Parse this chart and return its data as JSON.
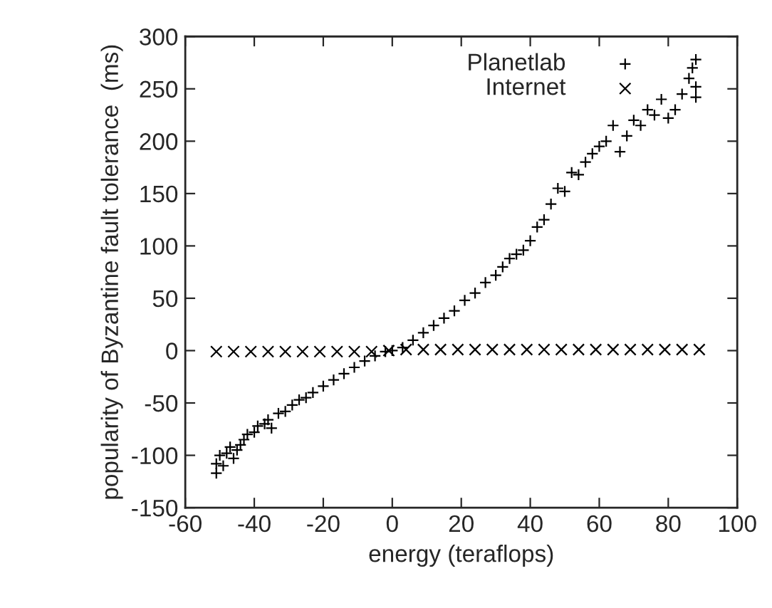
{
  "chart_data": {
    "type": "scatter",
    "xlabel": "energy (teraflops)",
    "ylabel": "popularity of Byzantine fault tolerance  (ms)",
    "xlim": [
      -60,
      100
    ],
    "xticks": [
      -60,
      -40,
      -20,
      0,
      20,
      40,
      60,
      80,
      100
    ],
    "ylim": [
      -150,
      300
    ],
    "yticks": [
      -150,
      -100,
      -50,
      0,
      50,
      100,
      150,
      200,
      250,
      300
    ],
    "grid": false,
    "legend": "top right",
    "series": [
      {
        "name": "Planetlab",
        "color": "#000000",
        "marker": "cross",
        "x": [
          -51,
          -51,
          -50,
          -49,
          -48,
          -47,
          -46,
          -45,
          -44,
          -43,
          -42,
          -40,
          -39,
          -37,
          -36,
          -35,
          -33,
          -31,
          -29,
          -27,
          -25,
          -23,
          -20,
          -17,
          -14,
          -11,
          -8,
          -5,
          -2,
          0,
          3,
          6,
          9,
          12,
          15,
          18,
          21,
          24,
          27,
          30,
          32,
          34,
          36,
          38,
          40,
          42,
          44,
          46,
          48,
          50,
          52,
          54,
          56,
          58,
          60,
          62,
          64,
          66,
          68,
          70,
          72,
          74,
          76,
          78,
          80,
          82,
          84,
          86,
          87,
          88,
          88,
          88
        ],
        "values": [
          -117,
          -108,
          -100,
          -110,
          -98,
          -92,
          -103,
          -95,
          -90,
          -85,
          -80,
          -78,
          -72,
          -70,
          -66,
          -74,
          -60,
          -58,
          -52,
          -47,
          -45,
          -40,
          -34,
          -28,
          -22,
          -16,
          -10,
          -5,
          -1,
          0,
          3,
          10,
          17,
          24,
          31,
          38,
          48,
          55,
          65,
          72,
          80,
          88,
          92,
          96,
          105,
          118,
          125,
          140,
          155,
          152,
          170,
          168,
          180,
          188,
          195,
          200,
          215,
          190,
          205,
          220,
          215,
          230,
          225,
          240,
          222,
          230,
          245,
          260,
          270,
          278,
          252,
          242
        ]
      },
      {
        "name": "Internet",
        "color": "#000000",
        "marker": "x",
        "x": [
          -51,
          -46,
          -41,
          -36,
          -31,
          -26,
          -21,
          -16,
          -11,
          -6,
          -1,
          4,
          9,
          14,
          19,
          24,
          29,
          34,
          39,
          44,
          49,
          54,
          59,
          64,
          69,
          74,
          79,
          84,
          89
        ],
        "values": [
          -1,
          -1,
          -1,
          -1,
          -1,
          -1,
          -1,
          -1,
          -1,
          -1,
          0,
          1,
          1,
          1,
          1,
          1,
          1,
          1,
          1,
          1,
          1,
          1,
          1,
          1,
          1,
          1,
          1,
          1,
          1
        ]
      }
    ]
  }
}
